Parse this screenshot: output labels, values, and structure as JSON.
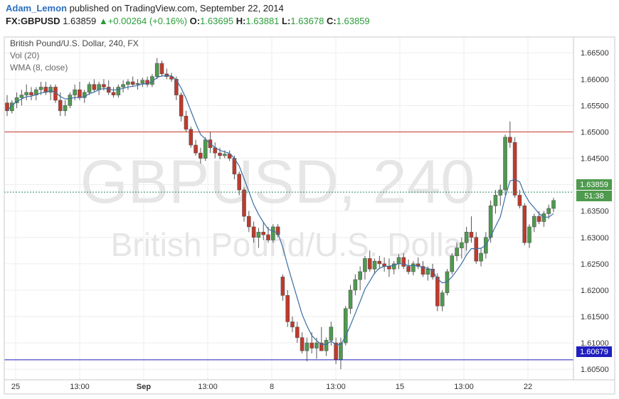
{
  "header": {
    "author": "Adam_Lemon",
    "published_text": "published on TradingView.com, September 22, 2014",
    "symbol": "FX:GBPUSD",
    "last": "1.63859",
    "change_arrow": "▲",
    "change": "+0.00264 (+0.16%)",
    "open_label": "O:",
    "open": "1.63695",
    "high_label": "H:",
    "high": "1.63881",
    "low_label": "L:",
    "low": "1.63678",
    "close_label": "C:",
    "close": "1.63859"
  },
  "legend": {
    "title": "British Pound/U.S. Dollar, 240, FX",
    "vol": "Vol (20)",
    "wma": "WMA (8, close)"
  },
  "watermark": {
    "symbol": "GBPUSD, 240",
    "name": "British Pound/U.S. Dollar"
  },
  "price_tags": {
    "last": "1.63859",
    "countdown": "51:38",
    "support": "1.60679"
  },
  "colors": {
    "up": "#4e9a4e",
    "down": "#c0392b",
    "wma": "#3a6ea5",
    "resistance": "#c0392b",
    "support": "#1f1fbf",
    "last_price": "#2e8b57"
  },
  "chart_data": {
    "type": "candlestick",
    "ylim": [
      1.603,
      1.668
    ],
    "y_ticks": [
      "1.66500",
      "1.66000",
      "1.65500",
      "1.65000",
      "1.64500",
      "1.64000",
      "1.63500",
      "1.63000",
      "1.62500",
      "1.62000",
      "1.61500",
      "1.61000",
      "1.60500"
    ],
    "x_ticks": [
      "25",
      "13:00",
      "Sep",
      "13:00",
      "8",
      "13:00",
      "15",
      "13:00",
      "22"
    ],
    "horizontal_lines": [
      1.65,
      1.60679
    ],
    "last_price": 1.63859,
    "candles": [
      [
        1.6555,
        1.657,
        1.653,
        1.654
      ],
      [
        1.654,
        1.656,
        1.6535,
        1.6555
      ],
      [
        1.6555,
        1.6575,
        1.6545,
        1.6565
      ],
      [
        1.6565,
        1.658,
        1.655,
        1.657
      ],
      [
        1.657,
        1.659,
        1.656,
        1.6575
      ],
      [
        1.6575,
        1.6585,
        1.656,
        1.657
      ],
      [
        1.657,
        1.6585,
        1.656,
        1.658
      ],
      [
        1.658,
        1.6595,
        1.657,
        1.6585
      ],
      [
        1.6585,
        1.6595,
        1.657,
        1.6575
      ],
      [
        1.6575,
        1.659,
        1.656,
        1.6585
      ],
      [
        1.6585,
        1.659,
        1.6555,
        1.656
      ],
      [
        1.656,
        1.6575,
        1.653,
        1.654
      ],
      [
        1.654,
        1.656,
        1.653,
        1.655
      ],
      [
        1.655,
        1.6575,
        1.6545,
        1.657
      ],
      [
        1.657,
        1.659,
        1.656,
        1.658
      ],
      [
        1.658,
        1.6595,
        1.656,
        1.6565
      ],
      [
        1.6565,
        1.658,
        1.6555,
        1.6575
      ],
      [
        1.6575,
        1.6595,
        1.657,
        1.659
      ],
      [
        1.659,
        1.66,
        1.6575,
        1.658
      ],
      [
        1.658,
        1.6595,
        1.657,
        1.659
      ],
      [
        1.659,
        1.66,
        1.6578,
        1.6585
      ],
      [
        1.6585,
        1.6598,
        1.657,
        1.6575
      ],
      [
        1.6575,
        1.6585,
        1.6565,
        1.657
      ],
      [
        1.657,
        1.659,
        1.6565,
        1.6585
      ],
      [
        1.6585,
        1.6598,
        1.6575,
        1.659
      ],
      [
        1.659,
        1.66,
        1.658,
        1.6595
      ],
      [
        1.6595,
        1.6605,
        1.6585,
        1.659
      ],
      [
        1.659,
        1.66,
        1.658,
        1.6592
      ],
      [
        1.6592,
        1.6603,
        1.6585,
        1.6598
      ],
      [
        1.6598,
        1.6605,
        1.6585,
        1.659
      ],
      [
        1.659,
        1.661,
        1.6585,
        1.6605
      ],
      [
        1.6605,
        1.664,
        1.66,
        1.663
      ],
      [
        1.663,
        1.6635,
        1.6605,
        1.661
      ],
      [
        1.661,
        1.662,
        1.66,
        1.6605
      ],
      [
        1.6605,
        1.6612,
        1.6595,
        1.66
      ],
      [
        1.66,
        1.6605,
        1.656,
        1.657
      ],
      [
        1.657,
        1.6575,
        1.652,
        1.653
      ],
      [
        1.653,
        1.654,
        1.65,
        1.6505
      ],
      [
        1.6505,
        1.651,
        1.647,
        1.6475
      ],
      [
        1.6475,
        1.6485,
        1.6455,
        1.646
      ],
      [
        1.646,
        1.647,
        1.644,
        1.645
      ],
      [
        1.645,
        1.649,
        1.6445,
        1.6485
      ],
      [
        1.6485,
        1.65,
        1.646,
        1.647
      ],
      [
        1.647,
        1.648,
        1.645,
        1.646
      ],
      [
        1.646,
        1.647,
        1.6448,
        1.6455
      ],
      [
        1.6455,
        1.6465,
        1.645,
        1.6458
      ],
      [
        1.6458,
        1.6465,
        1.6445,
        1.645
      ],
      [
        1.645,
        1.6455,
        1.641,
        1.642
      ],
      [
        1.642,
        1.6425,
        1.638,
        1.639
      ],
      [
        1.639,
        1.6395,
        1.633,
        1.634
      ],
      [
        1.634,
        1.635,
        1.631,
        1.632
      ],
      [
        1.632,
        1.633,
        1.629,
        1.63
      ],
      [
        1.63,
        1.6318,
        1.628,
        1.631
      ],
      [
        1.631,
        1.633,
        1.6295,
        1.6305
      ],
      [
        1.6305,
        1.632,
        1.629,
        1.6295
      ],
      [
        1.6295,
        1.6325,
        1.629,
        1.632
      ],
      [
        1.632,
        1.6325,
        1.63,
        1.6305
      ],
      [
        1.6225,
        1.623,
        1.618,
        1.619
      ],
      [
        1.619,
        1.62,
        1.613,
        1.614
      ],
      [
        1.614,
        1.615,
        1.612,
        1.613
      ],
      [
        1.613,
        1.614,
        1.61,
        1.611
      ],
      [
        1.611,
        1.612,
        1.608,
        1.6085
      ],
      [
        1.6085,
        1.611,
        1.6065,
        1.61
      ],
      [
        1.61,
        1.612,
        1.608,
        1.609
      ],
      [
        1.609,
        1.611,
        1.607,
        1.61
      ],
      [
        1.61,
        1.613,
        1.609,
        1.6085
      ],
      [
        1.6085,
        1.611,
        1.6075,
        1.6105
      ],
      [
        1.6105,
        1.614,
        1.6095,
        1.613
      ],
      [
        1.61,
        1.611,
        1.606,
        1.6068
      ],
      [
        1.6068,
        1.611,
        1.605,
        1.61
      ],
      [
        1.61,
        1.617,
        1.6095,
        1.6165
      ],
      [
        1.6165,
        1.621,
        1.6155,
        1.62
      ],
      [
        1.62,
        1.623,
        1.619,
        1.622
      ],
      [
        1.622,
        1.6245,
        1.62,
        1.6235
      ],
      [
        1.6235,
        1.6265,
        1.622,
        1.626
      ],
      [
        1.626,
        1.6275,
        1.6235,
        1.624
      ],
      [
        1.624,
        1.626,
        1.623,
        1.6255
      ],
      [
        1.6255,
        1.6265,
        1.624,
        1.625
      ],
      [
        1.625,
        1.6262,
        1.6235,
        1.6245
      ],
      [
        1.6245,
        1.626,
        1.6225,
        1.624
      ],
      [
        1.624,
        1.6255,
        1.623,
        1.625
      ],
      [
        1.625,
        1.6268,
        1.624,
        1.6262
      ],
      [
        1.6262,
        1.627,
        1.624,
        1.6245
      ],
      [
        1.6245,
        1.6258,
        1.623,
        1.6235
      ],
      [
        1.6235,
        1.6255,
        1.6228,
        1.625
      ],
      [
        1.625,
        1.6262,
        1.624,
        1.6245
      ],
      [
        1.6245,
        1.6255,
        1.6225,
        1.623
      ],
      [
        1.623,
        1.6245,
        1.6218,
        1.624
      ],
      [
        1.624,
        1.625,
        1.622,
        1.6225
      ],
      [
        1.6225,
        1.6232,
        1.616,
        1.617
      ],
      [
        1.617,
        1.62,
        1.616,
        1.6195
      ],
      [
        1.6195,
        1.624,
        1.619,
        1.6235
      ],
      [
        1.6235,
        1.627,
        1.623,
        1.6265
      ],
      [
        1.6265,
        1.629,
        1.6255,
        1.628
      ],
      [
        1.628,
        1.63,
        1.626,
        1.629
      ],
      [
        1.629,
        1.632,
        1.6275,
        1.631
      ],
      [
        1.631,
        1.634,
        1.629,
        1.63
      ],
      [
        1.63,
        1.631,
        1.625,
        1.6255
      ],
      [
        1.6255,
        1.628,
        1.6245,
        1.627
      ],
      [
        1.627,
        1.631,
        1.626,
        1.63
      ],
      [
        1.63,
        1.637,
        1.629,
        1.636
      ],
      [
        1.636,
        1.639,
        1.6345,
        1.638
      ],
      [
        1.638,
        1.64,
        1.636,
        1.639
      ],
      [
        1.639,
        1.6495,
        1.638,
        1.649
      ],
      [
        1.649,
        1.652,
        1.647,
        1.648
      ],
      [
        1.648,
        1.649,
        1.6375,
        1.638
      ],
      [
        1.638,
        1.639,
        1.6355,
        1.636
      ],
      [
        1.636,
        1.6365,
        1.6285,
        1.629
      ],
      [
        1.629,
        1.6325,
        1.628,
        1.632
      ],
      [
        1.632,
        1.6345,
        1.631,
        1.634
      ],
      [
        1.634,
        1.635,
        1.6325,
        1.633
      ],
      [
        1.633,
        1.635,
        1.632,
        1.6345
      ],
      [
        1.6345,
        1.6362,
        1.6335,
        1.6355
      ],
      [
        1.6355,
        1.6375,
        1.6348,
        1.637
      ]
    ]
  }
}
